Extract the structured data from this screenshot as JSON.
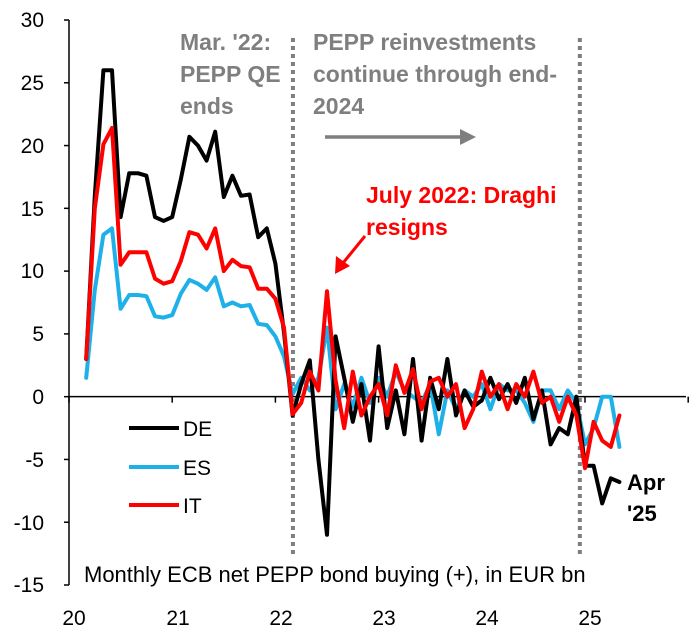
{
  "chart_data": {
    "type": "line",
    "caption": "Monthly ECB net PEPP bond buying (+), in EUR bn",
    "xlabel": "",
    "ylabel": "",
    "ylim": [
      -15,
      30
    ],
    "xlim": [
      20,
      25.9
    ],
    "yticks": [
      30,
      25,
      20,
      15,
      10,
      5,
      0,
      -5,
      -10,
      -15
    ],
    "ytick_labels": [
      "30",
      "25",
      "20",
      "15",
      "10",
      "5",
      "0",
      "-5",
      "-10",
      "-15"
    ],
    "xticks": [
      20,
      21,
      22,
      23,
      24,
      25
    ],
    "xtick_labels": [
      "20",
      "21",
      "22",
      "23",
      "24",
      "25"
    ],
    "x_start_month": "2020-03",
    "x_step": "monthly",
    "series": [
      {
        "name": "DE",
        "color": "#000000",
        "values": [
          3,
          16,
          26,
          26,
          14.3,
          17.8,
          17.8,
          17.6,
          14.3,
          14.0,
          14.3,
          17.3,
          20.7,
          20.0,
          18.8,
          21.1,
          15.9,
          17.6,
          16.0,
          16.1,
          12.7,
          13.4,
          10.6,
          5.1,
          -1.5,
          1.0,
          2.9,
          -5.0,
          -11.0,
          4.8,
          1.5,
          -2.0,
          1.0,
          -3.5,
          4.0,
          -2.5,
          0.5,
          -3.0,
          3.0,
          -3.5,
          1.5,
          -1.0,
          3.0,
          -1.5,
          0.5,
          -0.8,
          -0.3,
          1.5,
          -0.2,
          1.0,
          -0.5,
          1.5,
          -1.8,
          0.5,
          -3.8,
          -2.5,
          -3.0,
          0.0,
          -5.5,
          -5.5,
          -8.5,
          -6.5,
          -6.8
        ]
      },
      {
        "name": "ES",
        "color": "#1eb0e8",
        "values": [
          1.5,
          8.5,
          12.9,
          13.4,
          7.0,
          8.1,
          8.1,
          8.0,
          6.4,
          6.3,
          6.5,
          8.2,
          9.3,
          9.0,
          8.5,
          9.5,
          7.2,
          7.5,
          7.2,
          7.3,
          5.8,
          5.7,
          4.8,
          3.2,
          0.2,
          1.5,
          0.5,
          1.5,
          5.5,
          -1.0,
          1.0,
          -0.8,
          1.5,
          -0.5,
          1.5,
          0.0,
          2.0,
          0.5,
          0.0,
          -0.5,
          1.0,
          -3.0,
          0.5,
          -1.0,
          0.5,
          0.0,
          1.0,
          -1.0,
          1.0,
          0.5,
          0.5,
          -0.5,
          -2.0,
          0.5,
          0.5,
          -1.0,
          0.5,
          -0.5,
          -3.8,
          -2.5,
          0.0,
          0.0,
          -4.0
        ]
      },
      {
        "name": "IT",
        "color": "#ff0000",
        "values": [
          3,
          15,
          20.1,
          21.4,
          10.5,
          11.5,
          11.5,
          11.5,
          9.4,
          9.0,
          9.2,
          10.8,
          13.1,
          12.9,
          11.8,
          13.4,
          10.0,
          10.9,
          10.4,
          10.3,
          8.6,
          8.6,
          7.8,
          5.5,
          -1.4,
          -0.5,
          2.0,
          0.5,
          8.4,
          1.3,
          -2.5,
          2.0,
          -1.5,
          0.0,
          1.0,
          -1.5,
          2.5,
          0.3,
          2.2,
          -1.0,
          1.2,
          1.5,
          0.0,
          1.0,
          -2.5,
          -1.0,
          2.0,
          0.0,
          1.0,
          -1.0,
          1.0,
          0.0,
          2.0,
          -0.5,
          0.0,
          -2.0,
          0.0,
          -1.5,
          -5.7,
          -2.0,
          -3.5,
          -4.0,
          -1.5
        ]
      }
    ],
    "vlines": [
      {
        "x": 22.17,
        "label": "Mar. '22: PEPP QE ends"
      },
      {
        "x": 24.95,
        "label": ""
      }
    ],
    "annotations": {
      "mar22_lines": [
        "Mar. '22:",
        "PEPP QE",
        "ends"
      ],
      "reinvest_lines": [
        "PEPP reinvestments",
        "continue through end-",
        "2024"
      ],
      "draghi_lines": [
        "July 2022: Draghi",
        "resigns"
      ],
      "apr_lines": [
        "Apr",
        "'25"
      ]
    },
    "legend": {
      "placement": "bottom-left",
      "entries": [
        "DE",
        "ES",
        "IT"
      ]
    }
  },
  "colors": {
    "gray_annotation": "#7f7f7f",
    "red_annotation": "#ff0000",
    "axis": "#000000"
  }
}
